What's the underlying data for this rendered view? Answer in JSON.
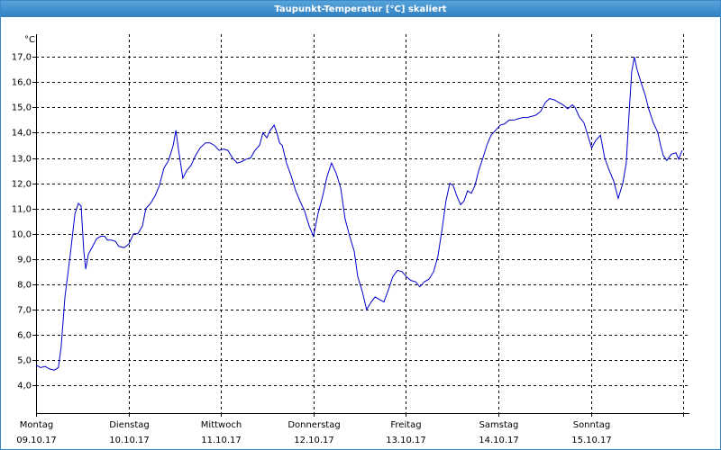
{
  "chart_data": {
    "type": "line",
    "title": "Taupunkt-Temperatur [°C] skaliert",
    "y_unit": "°C",
    "x": [
      0,
      1.2,
      2.3,
      3.5,
      4.7,
      5.8,
      6.5,
      7.5,
      8.9,
      10.1,
      11.0,
      11.7,
      12.4,
      12.9,
      13.6,
      14.7,
      15.7,
      16.8,
      17.8,
      18.5,
      19.6,
      20.6,
      21.5,
      22.9,
      24.1,
      25.3,
      26.4,
      27.6,
      28.5,
      29.7,
      30.9,
      32.0,
      33.2,
      34.4,
      35.6,
      36.3,
      37.0,
      38.1,
      39.1,
      40.2,
      41.4,
      42.6,
      44.0,
      45.1,
      46.3,
      47.5,
      48.7,
      49.8,
      51.0,
      52.2,
      53.3,
      54.5,
      55.7,
      56.8,
      58.0,
      58.9,
      59.9,
      60.8,
      61.8,
      62.5,
      63.2,
      63.9,
      65.0,
      66.2,
      67.4,
      68.5,
      69.7,
      70.9,
      72.0,
      73.2,
      74.4,
      75.6,
      76.7,
      77.9,
      79.1,
      80.2,
      81.4,
      82.6,
      83.5,
      84.7,
      85.8,
      87.0,
      88.0,
      89.1,
      90.3,
      91.5,
      92.6,
      93.8,
      95.0,
      96.1,
      97.3,
      98.5,
      99.6,
      100.8,
      102.0,
      103.2,
      104.3,
      105.5,
      106.4,
      107.4,
      108.3,
      109.2,
      110.2,
      111.1,
      112.0,
      113.0,
      113.9,
      114.9,
      116.0,
      117.0,
      118.1,
      119.3,
      120.5,
      121.6,
      122.8,
      124.0,
      125.1,
      126.3,
      127.5,
      128.7,
      129.8,
      131.0,
      132.2,
      133.3,
      134.5,
      135.7,
      136.8,
      138.0,
      139.2,
      139.9,
      141.1,
      142.2,
      143.2,
      144.2,
      145.3,
      146.5,
      147.6,
      148.8,
      149.9,
      151.1,
      152.3,
      153.2,
      153.9,
      154.6,
      155.3,
      156.0,
      157.0,
      158.1,
      159.1,
      160.2,
      161.4,
      162.1,
      162.8,
      163.7,
      164.9,
      166.1,
      166.8,
      167.7
    ],
    "series": [
      {
        "name": "Taupunkt",
        "color": "#0000cc",
        "values": [
          4.8,
          4.7,
          4.75,
          4.65,
          4.6,
          4.7,
          5.5,
          7.5,
          9.2,
          10.8,
          11.2,
          11.1,
          9.3,
          8.6,
          9.2,
          9.5,
          9.8,
          9.9,
          9.9,
          9.75,
          9.75,
          9.7,
          9.5,
          9.45,
          9.6,
          10.0,
          10.0,
          10.3,
          11.0,
          11.2,
          11.5,
          11.9,
          12.6,
          12.9,
          13.5,
          14.1,
          13.3,
          12.2,
          12.5,
          12.7,
          13.1,
          13.4,
          13.6,
          13.6,
          13.5,
          13.3,
          13.35,
          13.3,
          13.0,
          12.8,
          12.85,
          12.95,
          13.0,
          13.3,
          13.5,
          14.0,
          13.8,
          14.1,
          14.3,
          14.0,
          13.6,
          13.5,
          12.8,
          12.3,
          11.7,
          11.3,
          10.9,
          10.3,
          9.9,
          10.8,
          11.5,
          12.3,
          12.8,
          12.4,
          11.8,
          10.6,
          9.9,
          9.3,
          8.3,
          7.7,
          7.0,
          7.3,
          7.5,
          7.4,
          7.3,
          7.8,
          8.3,
          8.55,
          8.5,
          8.3,
          8.15,
          8.1,
          7.9,
          8.1,
          8.2,
          8.5,
          9.1,
          10.3,
          11.3,
          12.0,
          11.9,
          11.5,
          11.15,
          11.3,
          11.7,
          11.6,
          11.9,
          12.5,
          13.0,
          13.5,
          13.9,
          14.1,
          14.3,
          14.35,
          14.5,
          14.5,
          14.55,
          14.6,
          14.6,
          14.65,
          14.7,
          14.85,
          15.2,
          15.35,
          15.3,
          15.2,
          15.1,
          14.95,
          15.1,
          15.0,
          14.6,
          14.4,
          13.9,
          13.4,
          13.7,
          13.9,
          13.0,
          12.5,
          12.1,
          11.4,
          12.0,
          12.8,
          14.7,
          16.4,
          17.0,
          16.5,
          16.0,
          15.5,
          14.9,
          14.4,
          14.0,
          13.5,
          13.1,
          12.9,
          13.15,
          13.2,
          12.95,
          13.3
        ]
      }
    ],
    "xlim": [
      0,
      169.6
    ],
    "xticks": [
      {
        "value": 0,
        "label": "Montag"
      },
      {
        "value": 24,
        "label": "Dienstag"
      },
      {
        "value": 48,
        "label": "Mittwoch"
      },
      {
        "value": 72,
        "label": "Donnerstag"
      },
      {
        "value": 96,
        "label": "Freitag"
      },
      {
        "value": 120,
        "label": "Samstag"
      },
      {
        "value": 144,
        "label": "Sonntag"
      },
      {
        "value": 168,
        "label": null
      }
    ],
    "xtick_dates": [
      "09.10.17",
      "10.10.17",
      "11.10.17",
      "12.10.17",
      "13.10.17",
      "14.10.17",
      "15.10.17",
      null
    ],
    "ylim": [
      2.9,
      17.9
    ],
    "yticks": [
      {
        "value": 4,
        "label": "4,0"
      },
      {
        "value": 5,
        "label": "5,0"
      },
      {
        "value": 6,
        "label": "6,0"
      },
      {
        "value": 7,
        "label": "7,0"
      },
      {
        "value": 8,
        "label": "8,0"
      },
      {
        "value": 9,
        "label": "9,0"
      },
      {
        "value": 10,
        "label": "10,0"
      },
      {
        "value": 11,
        "label": "11,0"
      },
      {
        "value": 12,
        "label": "12,0"
      },
      {
        "value": 13,
        "label": "13,0"
      },
      {
        "value": 14,
        "label": "14,0"
      },
      {
        "value": 15,
        "label": "15,0"
      },
      {
        "value": 16,
        "label": "16,0"
      },
      {
        "value": 17,
        "label": "17,0"
      }
    ],
    "grid": true
  }
}
